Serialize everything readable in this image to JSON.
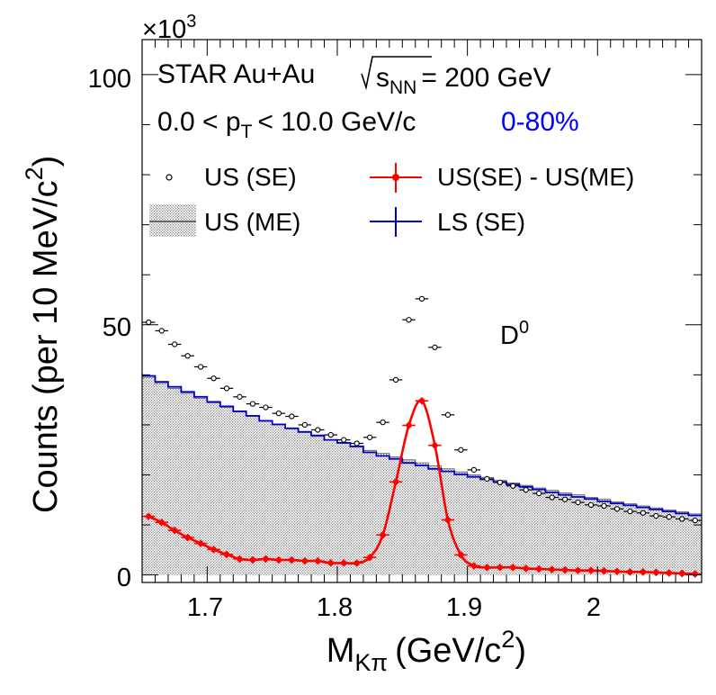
{
  "header": {
    "experiment": "STAR Au+Au",
    "energy_sqrt": "s",
    "energy_sub": "NN",
    "energy_value": "= 200 GeV",
    "pt_lo": "0.0 < p",
    "pt_sub": "T",
    "pt_hi": "< 10.0 GeV/c",
    "centrality": "0-80%",
    "particle": "D",
    "particle_sup": "0"
  },
  "axes": {
    "x_label_main": "M",
    "x_label_sub": "Kπ",
    "x_label_unit": "(GeV/c",
    "x_label_unit_sup": "2",
    "x_label_close": ")",
    "y_label": "Counts (per 10 MeV/c",
    "y_label_sup": "2",
    "y_label_close": ")",
    "y_multiplier": "×10",
    "y_multiplier_exp": "3"
  },
  "legend": {
    "us_se": "US (SE)",
    "us_me": "US (ME)",
    "diff": "US(SE) - US(ME)",
    "ls_se": "LS (SE)"
  },
  "colors": {
    "diff": "#ff0000",
    "ls": "#0000cc",
    "centrality": "#0000ff",
    "fill": "#d9d9d9"
  },
  "chart_data": {
    "type": "scatter",
    "xlabel": "M_Kπ (GeV/c^2)",
    "ylabel": "Counts (per 10 MeV/c^2) ×10^3",
    "xlim": [
      1.65,
      2.08
    ],
    "ylim": [
      -1.5,
      107
    ],
    "x_ticks": [
      "1.7",
      "1.8",
      "1.9",
      "2"
    ],
    "y_ticks": [
      "0",
      "50",
      "100"
    ],
    "grid": false,
    "legend_position": "top",
    "x": [
      1.655,
      1.665,
      1.675,
      1.685,
      1.695,
      1.705,
      1.715,
      1.725,
      1.735,
      1.745,
      1.755,
      1.765,
      1.775,
      1.785,
      1.795,
      1.805,
      1.815,
      1.825,
      1.835,
      1.845,
      1.855,
      1.865,
      1.875,
      1.885,
      1.895,
      1.905,
      1.915,
      1.925,
      1.935,
      1.945,
      1.955,
      1.965,
      1.975,
      1.985,
      1.995,
      2.005,
      2.015,
      2.025,
      2.035,
      2.045,
      2.055,
      2.065,
      2.075
    ],
    "series": [
      {
        "name": "US (SE)",
        "values": [
          50.5,
          48.8,
          46.1,
          43.8,
          41.6,
          39.3,
          37.3,
          35.6,
          34.2,
          33.5,
          32.3,
          31.7,
          30.0,
          29.0,
          28.0,
          27.0,
          26.3,
          27.5,
          30.5,
          39.0,
          51.0,
          55.2,
          45.5,
          32.0,
          25.0,
          21.0,
          19.2,
          18.5,
          17.8,
          17.0,
          16.3,
          15.5,
          15.1,
          14.5,
          14.0,
          13.8,
          13.2,
          12.7,
          12.4,
          11.8,
          11.6,
          11.2,
          10.9
        ]
      },
      {
        "name": "US (ME)",
        "values": [
          39.5,
          38.3,
          37.3,
          36.3,
          35.3,
          34.4,
          33.5,
          32.6,
          31.7,
          30.9,
          30.0,
          29.3,
          28.5,
          27.7,
          27.0,
          26.3,
          25.6,
          24.9,
          24.3,
          23.6,
          23.0,
          22.4,
          21.8,
          21.2,
          20.6,
          20.0,
          19.5,
          18.9,
          18.4,
          17.9,
          17.4,
          16.9,
          16.4,
          16.0,
          15.5,
          15.1,
          14.6,
          14.2,
          13.8,
          13.4,
          13.0,
          12.6,
          12.2
        ]
      },
      {
        "name": "US(SE) - US(ME)",
        "values": [
          11.7,
          10.5,
          8.9,
          7.5,
          6.3,
          5.1,
          4.1,
          3.2,
          3.0,
          3.2,
          3.0,
          3.0,
          2.8,
          2.8,
          2.4,
          2.4,
          2.4,
          3.5,
          8.0,
          18.6,
          29.9,
          34.8,
          25.9,
          11.0,
          4.0,
          1.8,
          1.5,
          1.5,
          1.5,
          1.3,
          1.2,
          1.1,
          1.0,
          0.9,
          0.9,
          0.8,
          0.7,
          0.6,
          0.6,
          0.5,
          0.4,
          0.3,
          0.2
        ]
      },
      {
        "name": "LS (SE)",
        "values": [
          39.8,
          38.6,
          37.6,
          36.6,
          35.6,
          34.6,
          33.7,
          32.7,
          31.8,
          30.8,
          30.1,
          29.3,
          28.6,
          27.9,
          27.0,
          26.4,
          25.7,
          24.5,
          23.8,
          23.2,
          22.4,
          21.9,
          21.2,
          20.7,
          20.1,
          19.6,
          19.1,
          18.6,
          18.1,
          17.6,
          17.1,
          16.5,
          16.0,
          15.6,
          15.2,
          14.7,
          14.3,
          13.9,
          13.5,
          13.1,
          12.7,
          12.3,
          11.9
        ]
      }
    ]
  }
}
